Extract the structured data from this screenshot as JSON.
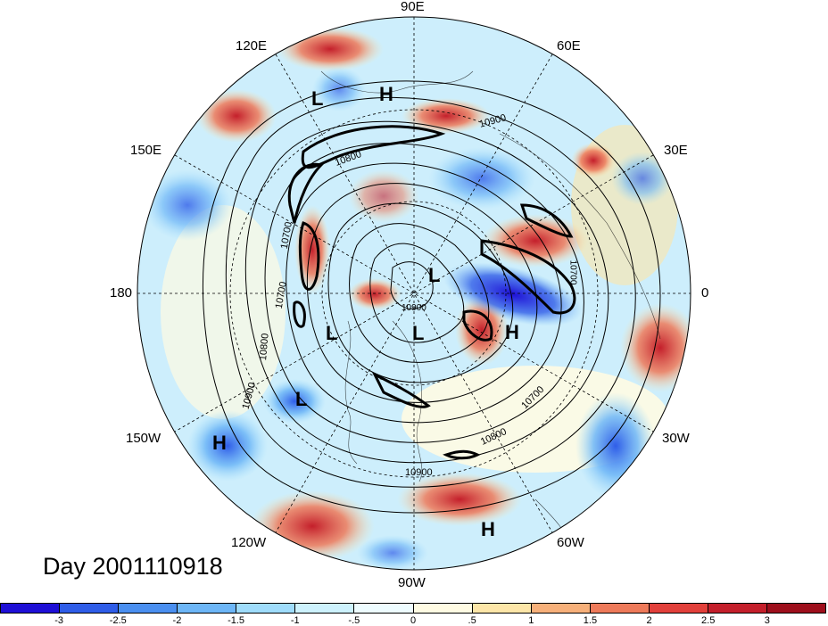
{
  "title": "Day 2001110918",
  "longitude_labels": [
    "90E",
    "120E",
    "60E",
    "150E",
    "30E",
    "180",
    "0",
    "150W",
    "30W",
    "120W",
    "60W",
    "90W"
  ],
  "pressure_centers": [
    "L",
    "H",
    "L",
    "L",
    "L",
    "H",
    "L",
    "H",
    "H"
  ],
  "contour_labels": [
    "10900",
    "10800",
    "10700",
    "10700",
    "10800",
    "10900",
    "10900",
    "10800",
    "10700",
    "10900",
    "10700"
  ],
  "colorbar": {
    "ticks": [
      "-3",
      "-2.5",
      "-2",
      "-1.5",
      "-1",
      "-.5",
      "0",
      ".5",
      "1",
      "1.5",
      "2",
      "2.5",
      "3"
    ],
    "colors": [
      "#1e0fd6",
      "#2f5de8",
      "#4a8ff0",
      "#6db6f7",
      "#9fdcfb",
      "#cdf2fd",
      "#eefcff",
      "#fffbe3",
      "#fde6a8",
      "#f7b07a",
      "#ee7a5a",
      "#e2403b",
      "#c41f2b",
      "#9e0f1c"
    ]
  },
  "colors": {
    "ocean_background": "#cdeefc",
    "warm_anomaly": "#e2403b",
    "cold_anomaly": "#2f5de8",
    "contour": "#000000"
  }
}
